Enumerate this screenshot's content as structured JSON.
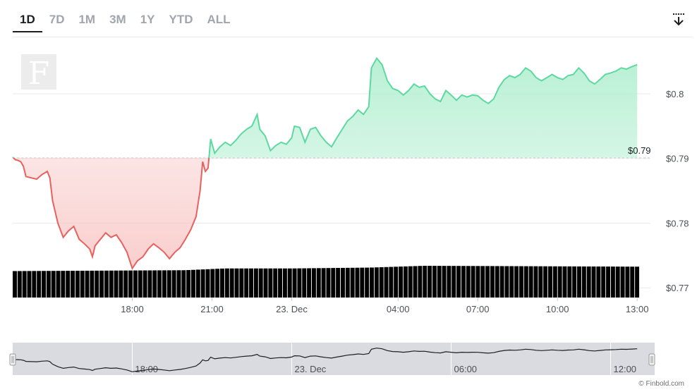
{
  "range_buttons": [
    "1D",
    "7D",
    "1M",
    "3M",
    "1Y",
    "YTD",
    "ALL"
  ],
  "active_range": "1D",
  "watermark_text": "F",
  "credit": "© Finbold.com",
  "colors": {
    "up_line": "#5dd9a0",
    "up_fill": "#b8f0d4",
    "down_line": "#e8615f",
    "down_fill": "#f8c9c8",
    "volume": "#000000",
    "grid": "#e6e8ec",
    "navigator_fill": "#d9dbe0"
  },
  "chart_data": {
    "type": "line",
    "title": "",
    "base_value": 0.7901,
    "current_price_label": "$0.79",
    "y_ticks": [
      0.77,
      0.78,
      0.79,
      0.8
    ],
    "y_tick_labels": [
      "$0.77",
      "$0.78",
      "$0.79",
      "$0.8"
    ],
    "ylim": [
      0.7685,
      0.8085
    ],
    "x_ticks": [
      {
        "t": 18.0,
        "label": "18:00"
      },
      {
        "t": 21.0,
        "label": "21:00"
      },
      {
        "t": 24.0,
        "label": "23. Dec"
      },
      {
        "t": 28.0,
        "label": "04:00"
      },
      {
        "t": 31.0,
        "label": "07:00"
      },
      {
        "t": 34.0,
        "label": "10:00"
      },
      {
        "t": 37.0,
        "label": "13:00"
      }
    ],
    "xlim": [
      13.5,
      37.5
    ],
    "series": [
      {
        "points": [
          [
            13.5,
            0.7902
          ],
          [
            13.6,
            0.7898
          ],
          [
            13.7,
            0.7897
          ],
          [
            13.8,
            0.7895
          ],
          [
            13.9,
            0.7888
          ],
          [
            14.0,
            0.7872
          ],
          [
            14.2,
            0.787
          ],
          [
            14.4,
            0.7868
          ],
          [
            14.6,
            0.7875
          ],
          [
            14.8,
            0.788
          ],
          [
            14.9,
            0.787
          ],
          [
            15.0,
            0.7835
          ],
          [
            15.2,
            0.78
          ],
          [
            15.4,
            0.7778
          ],
          [
            15.6,
            0.7788
          ],
          [
            15.8,
            0.7795
          ],
          [
            16.0,
            0.7775
          ],
          [
            16.2,
            0.7768
          ],
          [
            16.4,
            0.776
          ],
          [
            16.5,
            0.7748
          ],
          [
            16.6,
            0.7765
          ],
          [
            16.8,
            0.7775
          ],
          [
            17.0,
            0.7785
          ],
          [
            17.2,
            0.7778
          ],
          [
            17.4,
            0.7782
          ],
          [
            17.6,
            0.777
          ],
          [
            17.8,
            0.7755
          ],
          [
            18.0,
            0.773
          ],
          [
            18.2,
            0.7742
          ],
          [
            18.4,
            0.7748
          ],
          [
            18.6,
            0.776
          ],
          [
            18.8,
            0.7768
          ],
          [
            19.0,
            0.7762
          ],
          [
            19.2,
            0.7755
          ],
          [
            19.4,
            0.7745
          ],
          [
            19.6,
            0.7755
          ],
          [
            19.8,
            0.7762
          ],
          [
            20.0,
            0.7775
          ],
          [
            20.2,
            0.779
          ],
          [
            20.4,
            0.781
          ],
          [
            20.55,
            0.785
          ],
          [
            20.65,
            0.7895
          ],
          [
            20.75,
            0.788
          ],
          [
            20.85,
            0.7885
          ],
          [
            20.95,
            0.793
          ],
          [
            21.1,
            0.7908
          ],
          [
            21.3,
            0.7918
          ],
          [
            21.5,
            0.7925
          ],
          [
            21.7,
            0.792
          ],
          [
            21.9,
            0.7928
          ],
          [
            22.1,
            0.7938
          ],
          [
            22.3,
            0.7945
          ],
          [
            22.5,
            0.795
          ],
          [
            22.7,
            0.7968
          ],
          [
            22.8,
            0.7945
          ],
          [
            23.0,
            0.7935
          ],
          [
            23.2,
            0.7912
          ],
          [
            23.4,
            0.792
          ],
          [
            23.6,
            0.7925
          ],
          [
            23.8,
            0.7922
          ],
          [
            24.0,
            0.7932
          ],
          [
            24.1,
            0.795
          ],
          [
            24.3,
            0.7948
          ],
          [
            24.5,
            0.7925
          ],
          [
            24.7,
            0.7945
          ],
          [
            24.9,
            0.7948
          ],
          [
            25.1,
            0.7935
          ],
          [
            25.3,
            0.7925
          ],
          [
            25.5,
            0.7918
          ],
          [
            25.7,
            0.7932
          ],
          [
            25.9,
            0.7945
          ],
          [
            26.1,
            0.7958
          ],
          [
            26.3,
            0.7965
          ],
          [
            26.5,
            0.7975
          ],
          [
            26.7,
            0.7968
          ],
          [
            26.9,
            0.798
          ],
          [
            27.0,
            0.804
          ],
          [
            27.2,
            0.8055
          ],
          [
            27.4,
            0.8045
          ],
          [
            27.6,
            0.802
          ],
          [
            27.8,
            0.8008
          ],
          [
            28.0,
            0.8005
          ],
          [
            28.2,
            0.7998
          ],
          [
            28.4,
            0.8005
          ],
          [
            28.6,
            0.8015
          ],
          [
            28.8,
            0.801
          ],
          [
            29.0,
            0.8012
          ],
          [
            29.2,
            0.8
          ],
          [
            29.4,
            0.7992
          ],
          [
            29.6,
            0.7988
          ],
          [
            29.8,
            0.8005
          ],
          [
            30.0,
            0.7998
          ],
          [
            30.2,
            0.799
          ],
          [
            30.4,
            0.7998
          ],
          [
            30.6,
            0.7995
          ],
          [
            30.8,
            0.7998
          ],
          [
            31.0,
            0.7997
          ],
          [
            31.2,
            0.799
          ],
          [
            31.4,
            0.7985
          ],
          [
            31.6,
            0.7992
          ],
          [
            31.8,
            0.801
          ],
          [
            32.0,
            0.8022
          ],
          [
            32.2,
            0.8028
          ],
          [
            32.4,
            0.8025
          ],
          [
            32.6,
            0.803
          ],
          [
            32.8,
            0.804
          ],
          [
            33.0,
            0.8035
          ],
          [
            33.2,
            0.8025
          ],
          [
            33.4,
            0.802
          ],
          [
            33.6,
            0.8025
          ],
          [
            33.8,
            0.803
          ],
          [
            34.0,
            0.8025
          ],
          [
            34.2,
            0.8022
          ],
          [
            34.4,
            0.8028
          ],
          [
            34.6,
            0.803
          ],
          [
            34.8,
            0.804
          ],
          [
            35.0,
            0.8032
          ],
          [
            35.2,
            0.802
          ],
          [
            35.4,
            0.8015
          ],
          [
            35.6,
            0.8022
          ],
          [
            35.8,
            0.803
          ],
          [
            36.0,
            0.8032
          ],
          [
            36.2,
            0.8035
          ],
          [
            36.4,
            0.804
          ],
          [
            36.6,
            0.8038
          ],
          [
            36.8,
            0.8042
          ],
          [
            37.0,
            0.8045
          ]
        ]
      }
    ],
    "volume": {
      "t_start": 13.5,
      "t_end": 37.1,
      "bar_count": 130,
      "profile": [
        [
          13.5,
          0.3
        ],
        [
          20.0,
          0.31
        ],
        [
          21.5,
          0.33
        ],
        [
          24.0,
          0.33
        ],
        [
          27.0,
          0.34
        ],
        [
          29.0,
          0.36
        ],
        [
          37.1,
          0.35
        ]
      ]
    },
    "navigator": {
      "xlim": [
        13.5,
        37.5
      ],
      "x_ticks": [
        {
          "t": 18.0,
          "label": "18:00"
        },
        {
          "t": 24.0,
          "label": "23. Dec"
        },
        {
          "t": 30.0,
          "label": "06:00"
        },
        {
          "t": 36.0,
          "label": "12:00"
        }
      ]
    }
  }
}
